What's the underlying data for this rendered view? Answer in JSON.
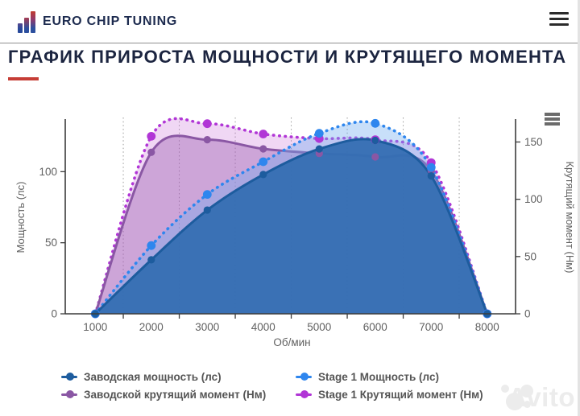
{
  "header": {
    "brand": "EURO CHIP TUNING"
  },
  "page": {
    "title": "ГРАФИК ПРИРОСТА МОЩНОСТИ И КРУТЯЩЕГО МОМЕНТА",
    "accent_color": "#c63d36"
  },
  "chart_data": {
    "type": "area",
    "x": [
      1000,
      2000,
      3000,
      4000,
      5000,
      6000,
      7000,
      8000
    ],
    "x_tick_labels": [
      "1000",
      "2000",
      "3000",
      "4000",
      "5000",
      "6000",
      "7000",
      "8000"
    ],
    "xlabel": "Об/мин",
    "axes": {
      "left": {
        "label": "Мощность (лс)",
        "ticks": [
          0,
          50,
          100
        ],
        "range": [
          0,
          137
        ]
      },
      "right": {
        "label": "Крутящий момент (Нм)",
        "ticks": [
          0,
          50,
          100,
          150
        ],
        "range": [
          0,
          170
        ]
      }
    },
    "grid": {
      "vertical_dotted_between_categories": true,
      "horizontal": false
    },
    "legend_position": "bottom",
    "series": [
      {
        "name": "Заводская мощность (лс)",
        "axis": "left",
        "line": "solid",
        "color": "#1d5c9e",
        "fill": "rgba(52,110,178,0.95)",
        "values": [
          0,
          38,
          73,
          98,
          116,
          122,
          97,
          0
        ]
      },
      {
        "name": "Stage 1 Мощность (лс)",
        "axis": "left",
        "line": "dotted",
        "color": "#2e86ee",
        "fill": "rgba(110,170,240,0.38)",
        "values": [
          0,
          48,
          84,
          107,
          127,
          134,
          103,
          0
        ]
      },
      {
        "name": "Заводской крутящий момент (Нм)",
        "axis": "right",
        "line": "solid",
        "color": "#8a57a4",
        "fill": "rgba(158,95,176,0.42)",
        "values": [
          0,
          141,
          152,
          144,
          140,
          137,
          125,
          0
        ]
      },
      {
        "name": "Stage 1 Крутящий момент (Нм)",
        "axis": "right",
        "line": "dotted",
        "color": "#b136d6",
        "fill": "rgba(198,102,214,0.26)",
        "values": [
          0,
          155,
          166,
          157,
          153,
          152,
          132,
          0
        ]
      }
    ]
  },
  "watermark": {
    "text": "Avito"
  }
}
